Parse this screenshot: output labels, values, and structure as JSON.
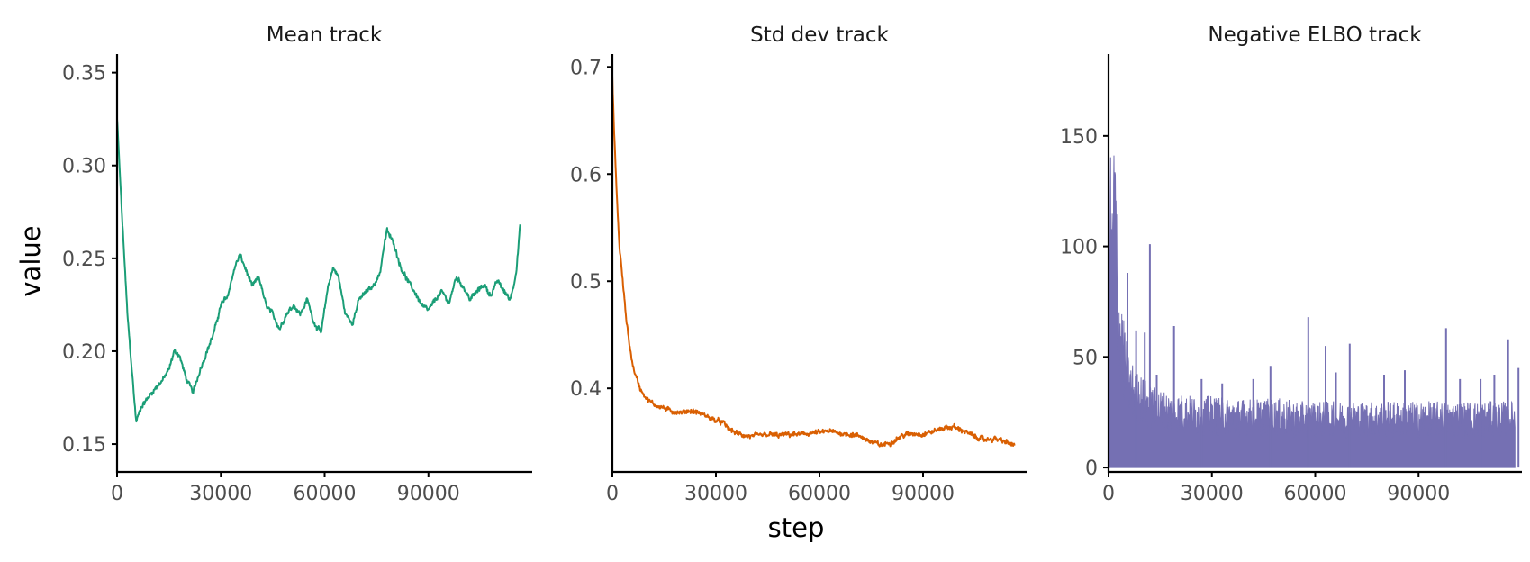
{
  "chart_data": {
    "type": "line",
    "x_axis_title": "step",
    "y_axis_title": "value",
    "shared_xlim": [
      0,
      120000
    ],
    "grid": false,
    "panels": [
      {
        "title": "Mean track",
        "type": "line",
        "color": "#1b9e77",
        "xlim": [
          0,
          120000
        ],
        "ylim": [
          0.135,
          0.36
        ],
        "xticks": [
          0,
          30000,
          60000,
          90000
        ],
        "xtick_labels": [
          "0",
          "30000",
          "60000",
          "90000"
        ],
        "yticks": [
          0.15,
          0.2,
          0.25,
          0.3,
          0.35
        ],
        "ytick_labels": [
          "0.15",
          "0.20",
          "0.25",
          "0.30",
          "0.35"
        ],
        "x": [
          0,
          1500,
          3000,
          4500,
          5500,
          7000,
          9000,
          11000,
          13000,
          15000,
          16500,
          18000,
          20000,
          22000,
          24000,
          26000,
          28000,
          30000,
          32000,
          34000,
          35500,
          37000,
          39000,
          41000,
          43000,
          45000,
          47000,
          49000,
          51000,
          53000,
          55000,
          57000,
          59000,
          61000,
          62500,
          64000,
          66000,
          68000,
          70000,
          72000,
          74000,
          76000,
          77000,
          78000,
          80000,
          82000,
          84000,
          86000,
          88000,
          90000,
          92000,
          94000,
          96000,
          98000,
          100000,
          102000,
          104000,
          106000,
          108000,
          110000,
          112000,
          113500,
          114500,
          115500,
          116500
        ],
        "values": [
          0.325,
          0.27,
          0.22,
          0.185,
          0.162,
          0.17,
          0.175,
          0.18,
          0.184,
          0.19,
          0.2,
          0.198,
          0.185,
          0.178,
          0.19,
          0.2,
          0.21,
          0.225,
          0.23,
          0.245,
          0.252,
          0.245,
          0.235,
          0.24,
          0.225,
          0.22,
          0.212,
          0.22,
          0.225,
          0.22,
          0.228,
          0.215,
          0.21,
          0.235,
          0.245,
          0.24,
          0.22,
          0.215,
          0.228,
          0.232,
          0.235,
          0.242,
          0.255,
          0.265,
          0.258,
          0.245,
          0.238,
          0.232,
          0.225,
          0.222,
          0.228,
          0.232,
          0.226,
          0.24,
          0.235,
          0.228,
          0.232,
          0.236,
          0.23,
          0.238,
          0.232,
          0.228,
          0.234,
          0.245,
          0.268
        ]
      },
      {
        "title": "Std dev track",
        "type": "line",
        "color": "#d95f02",
        "xlim": [
          0,
          120000
        ],
        "ylim": [
          0.322,
          0.712
        ],
        "xticks": [
          0,
          30000,
          60000,
          90000
        ],
        "xtick_labels": [
          "0",
          "30000",
          "60000",
          "90000"
        ],
        "yticks": [
          0.4,
          0.5,
          0.6,
          0.7
        ],
        "ytick_labels": [
          "0.4",
          "0.5",
          "0.6",
          "0.7"
        ],
        "x": [
          0,
          500,
          1000,
          1500,
          2000,
          3000,
          4000,
          5000,
          6000,
          7000,
          8000,
          10000,
          12000,
          14000,
          16000,
          18000,
          20000,
          22000,
          24000,
          26000,
          28000,
          30000,
          32000,
          34000,
          36000,
          38000,
          40000,
          42000,
          45000,
          48000,
          51000,
          54000,
          57000,
          60000,
          63000,
          66000,
          69000,
          72000,
          75000,
          78000,
          81000,
          84000,
          87000,
          90000,
          93000,
          96000,
          99000,
          102000,
          105000,
          108000,
          111000,
          114000,
          116500
        ],
        "values": [
          0.69,
          0.64,
          0.6,
          0.565,
          0.535,
          0.5,
          0.465,
          0.44,
          0.42,
          0.41,
          0.4,
          0.39,
          0.385,
          0.383,
          0.38,
          0.378,
          0.377,
          0.379,
          0.378,
          0.376,
          0.373,
          0.37,
          0.368,
          0.362,
          0.358,
          0.356,
          0.355,
          0.356,
          0.357,
          0.356,
          0.357,
          0.357,
          0.358,
          0.359,
          0.36,
          0.358,
          0.357,
          0.355,
          0.35,
          0.347,
          0.35,
          0.356,
          0.358,
          0.357,
          0.36,
          0.363,
          0.364,
          0.36,
          0.355,
          0.352,
          0.353,
          0.35,
          0.347
        ]
      },
      {
        "title": "Negative ELBO track",
        "type": "area",
        "color": "#7570b3",
        "xlim": [
          0,
          120000
        ],
        "ylim": [
          -2,
          187
        ],
        "xticks": [
          0,
          30000,
          60000,
          90000
        ],
        "xtick_labels": [
          "0",
          "30000",
          "60000",
          "90000"
        ],
        "yticks": [
          0,
          50,
          100,
          150
        ],
        "ytick_labels": [
          "0",
          "50",
          "100",
          "150"
        ],
        "x": [
          0,
          500,
          1000,
          1500,
          2000,
          2500,
          3000,
          3500,
          4000,
          5000,
          6000,
          8000,
          10000,
          12000,
          14000,
          16000,
          18000,
          20000,
          25000,
          30000,
          35000,
          40000,
          45000,
          50000,
          55000,
          60000,
          65000,
          70000,
          75000,
          80000,
          85000,
          90000,
          95000,
          100000,
          105000,
          110000,
          115000,
          118000
        ],
        "values": [
          140,
          118,
          95,
          120,
          128,
          85,
          70,
          65,
          58,
          48,
          40,
          36,
          33,
          30,
          29,
          28,
          27,
          27,
          26,
          26,
          25,
          25,
          25,
          25,
          24,
          24,
          24,
          24,
          24,
          24,
          24,
          24,
          24,
          24,
          24,
          24,
          24,
          24
        ],
        "spikes": [
          {
            "x": 5500,
            "value": 88
          },
          {
            "x": 8000,
            "value": 62
          },
          {
            "x": 10500,
            "value": 61
          },
          {
            "x": 12000,
            "value": 101
          },
          {
            "x": 14000,
            "value": 42
          },
          {
            "x": 19000,
            "value": 64
          },
          {
            "x": 27000,
            "value": 40
          },
          {
            "x": 33000,
            "value": 38
          },
          {
            "x": 42000,
            "value": 40
          },
          {
            "x": 47000,
            "value": 46
          },
          {
            "x": 58000,
            "value": 68
          },
          {
            "x": 63000,
            "value": 55
          },
          {
            "x": 66000,
            "value": 43
          },
          {
            "x": 70000,
            "value": 56
          },
          {
            "x": 80000,
            "value": 42
          },
          {
            "x": 86000,
            "value": 44
          },
          {
            "x": 98000,
            "value": 63
          },
          {
            "x": 102000,
            "value": 40
          },
          {
            "x": 108000,
            "value": 40
          },
          {
            "x": 112000,
            "value": 42
          },
          {
            "x": 116000,
            "value": 58
          },
          {
            "x": 119000,
            "value": 45
          }
        ]
      }
    ]
  }
}
